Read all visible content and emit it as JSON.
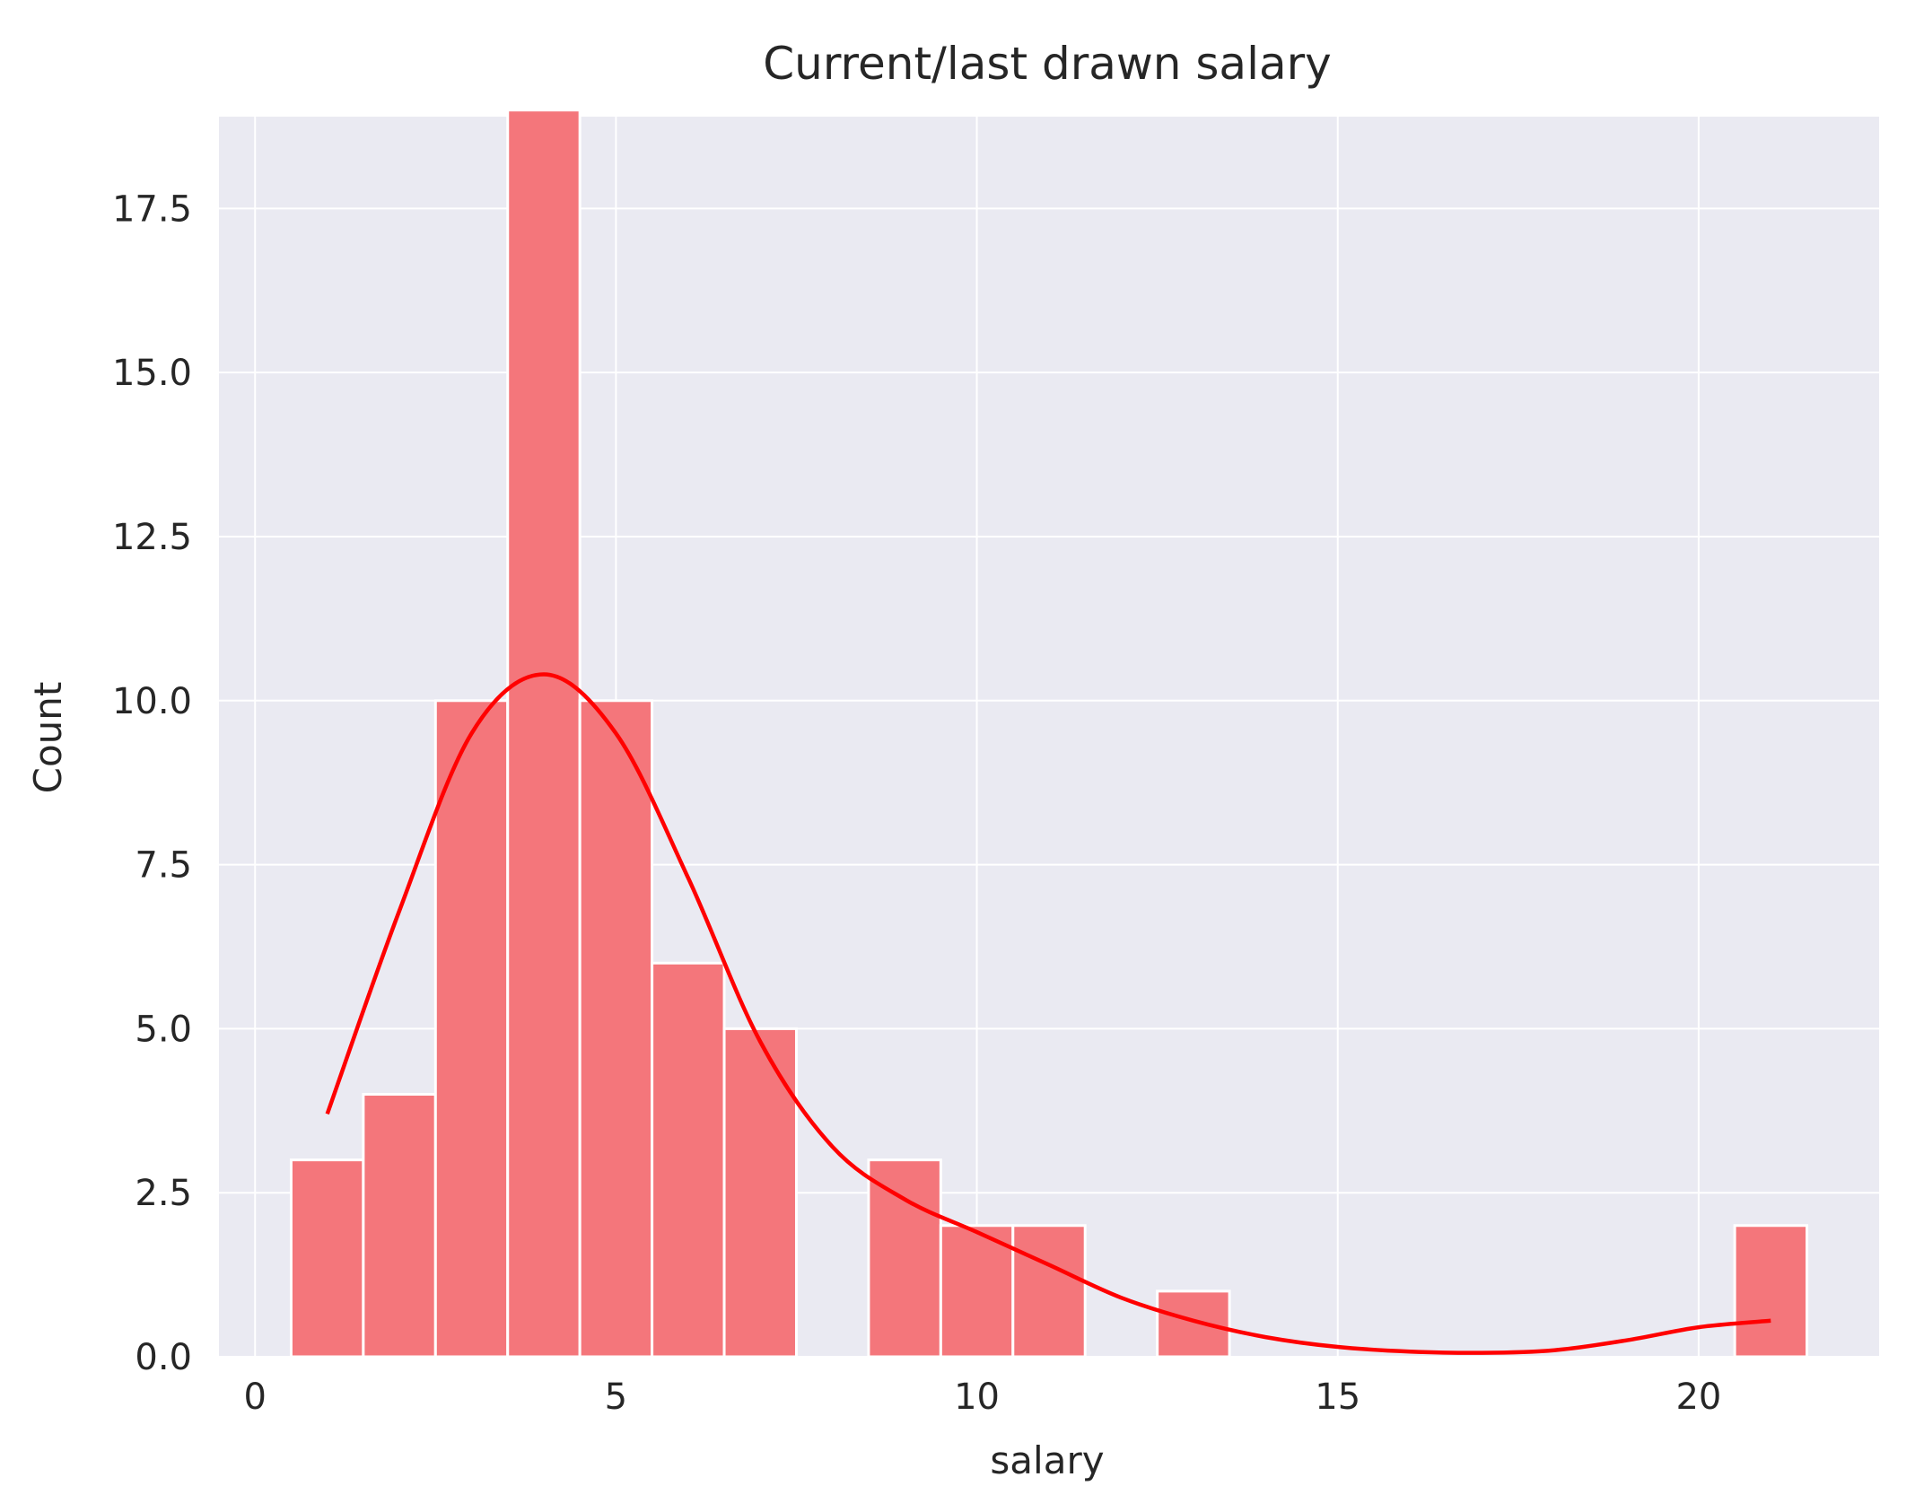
{
  "chart_data": {
    "type": "bar",
    "title": "Current/last drawn salary",
    "xlabel": "salary",
    "ylabel": "Count",
    "xlim": [
      -0.5,
      22.5
    ],
    "ylim": [
      0,
      18.9
    ],
    "x_ticks": [
      0,
      5,
      10,
      15,
      20
    ],
    "x_tick_labels": [
      "0",
      "5",
      "10",
      "15",
      "20"
    ],
    "y_ticks": [
      0,
      2.5,
      5,
      7.5,
      10,
      12.5,
      15,
      17.5
    ],
    "y_tick_labels": [
      "0.0",
      "2.5",
      "5.0",
      "7.5",
      "10.0",
      "12.5",
      "15.0",
      "17.5"
    ],
    "grid": true,
    "background_color": "#eaeaf2",
    "bar_color": "#f4767b",
    "bar_edge_color": "#ffffff",
    "kde_color": "#ff0000",
    "bins": [
      {
        "x0": 0.5,
        "x1": 1.5,
        "count": 3
      },
      {
        "x0": 1.5,
        "x1": 2.5,
        "count": 4
      },
      {
        "x0": 2.5,
        "x1": 3.5,
        "count": 10
      },
      {
        "x0": 3.5,
        "x1": 4.5,
        "count": 19
      },
      {
        "x0": 4.5,
        "x1": 5.5,
        "count": 10
      },
      {
        "x0": 5.5,
        "x1": 6.5,
        "count": 6
      },
      {
        "x0": 6.5,
        "x1": 7.5,
        "count": 5
      },
      {
        "x0": 8.5,
        "x1": 9.5,
        "count": 3
      },
      {
        "x0": 9.5,
        "x1": 10.5,
        "count": 2
      },
      {
        "x0": 10.5,
        "x1": 11.5,
        "count": 2
      },
      {
        "x0": 12.5,
        "x1": 13.5,
        "count": 1
      },
      {
        "x0": 20.5,
        "x1": 21.5,
        "count": 2
      }
    ],
    "kde_line": {
      "x": [
        1,
        2,
        3,
        4,
        5,
        6,
        7,
        8,
        9,
        10,
        11,
        12,
        13,
        14,
        15,
        16,
        17,
        18,
        19,
        20,
        21
      ],
      "y": [
        3.7,
        6.8,
        9.5,
        10.4,
        9.5,
        7.3,
        4.8,
        3.2,
        2.4,
        1.9,
        1.4,
        0.9,
        0.55,
        0.3,
        0.15,
        0.08,
        0.06,
        0.1,
        0.25,
        0.45,
        0.55
      ]
    }
  }
}
